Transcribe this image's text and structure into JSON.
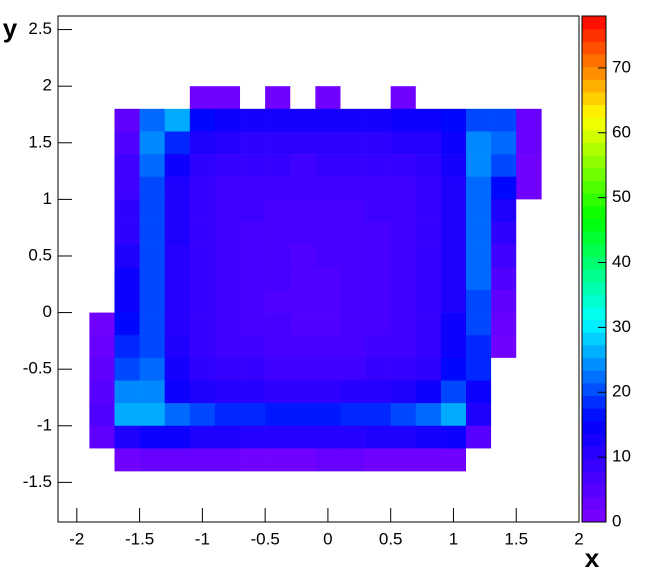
{
  "chart_data": {
    "type": "heatmap",
    "x_label": "x",
    "y_label": "y",
    "xlim": [
      -2.15,
      2.0
    ],
    "ylim": [
      -1.85,
      2.62
    ],
    "zlim": [
      0,
      78
    ],
    "xticks": [
      -2,
      -1.5,
      -1,
      -0.5,
      0,
      0.5,
      1,
      1.5,
      2
    ],
    "yticks": [
      -1.5,
      -1,
      -0.5,
      0,
      0.5,
      1,
      1.5,
      2,
      2.5
    ],
    "zticks": [
      0,
      10,
      20,
      30,
      40,
      50,
      60,
      70
    ],
    "palette": [
      "#8000ff",
      "#0000ff",
      "#00ffff",
      "#00ff00",
      "#ffff00",
      "#ff0000"
    ],
    "x_bins": [
      -1.9,
      -1.7,
      -1.5,
      -1.3,
      -1.1,
      -0.9,
      -0.7,
      -0.5,
      -0.3,
      -0.1,
      0.1,
      0.3,
      0.5,
      0.7,
      0.9,
      1.1,
      1.3,
      1.5,
      1.7
    ],
    "y_bins": [
      2.0,
      1.8,
      1.6,
      1.4,
      1.2,
      1.0,
      0.8,
      0.6,
      0.4,
      0.2,
      0.0,
      -0.2,
      -0.4,
      -0.6,
      -0.8,
      -1.0,
      -1.2,
      -1.4
    ],
    "z": [
      [
        0,
        0,
        0,
        0,
        2,
        2,
        0,
        2,
        0,
        2,
        0,
        0,
        2,
        0,
        0,
        0,
        0,
        0
      ],
      [
        0,
        4,
        22,
        26,
        16,
        14,
        13,
        13,
        13,
        13,
        13,
        13,
        14,
        14,
        16,
        20,
        20,
        3
      ],
      [
        0,
        6,
        24,
        18,
        12,
        11,
        10,
        10,
        10,
        10,
        10,
        10,
        11,
        11,
        14,
        24,
        22,
        3
      ],
      [
        0,
        8,
        22,
        14,
        10,
        9,
        9,
        9,
        8,
        9,
        9,
        9,
        9,
        10,
        13,
        24,
        20,
        2
      ],
      [
        0,
        8,
        20,
        12,
        9,
        8,
        8,
        8,
        8,
        8,
        8,
        8,
        8,
        9,
        12,
        22,
        16,
        2
      ],
      [
        0,
        10,
        20,
        12,
        9,
        8,
        8,
        7,
        7,
        7,
        7,
        8,
        8,
        9,
        12,
        22,
        12,
        0
      ],
      [
        0,
        10,
        20,
        12,
        9,
        8,
        7,
        7,
        7,
        7,
        7,
        7,
        8,
        9,
        12,
        22,
        10,
        0
      ],
      [
        0,
        12,
        20,
        11,
        9,
        8,
        7,
        7,
        6,
        7,
        7,
        7,
        8,
        9,
        12,
        22,
        8,
        0
      ],
      [
        0,
        14,
        20,
        11,
        9,
        8,
        7,
        7,
        6,
        6,
        7,
        7,
        8,
        9,
        12,
        22,
        6,
        0
      ],
      [
        0,
        14,
        20,
        11,
        9,
        8,
        7,
        6,
        6,
        6,
        7,
        7,
        8,
        9,
        12,
        20,
        4,
        0
      ],
      [
        2,
        16,
        20,
        11,
        9,
        8,
        7,
        7,
        6,
        6,
        7,
        7,
        8,
        9,
        14,
        20,
        3,
        0
      ],
      [
        3,
        18,
        20,
        12,
        9,
        8,
        8,
        7,
        7,
        7,
        7,
        8,
        8,
        9,
        14,
        18,
        2,
        0
      ],
      [
        4,
        20,
        22,
        13,
        10,
        9,
        9,
        8,
        8,
        8,
        8,
        9,
        9,
        10,
        16,
        18,
        0,
        0
      ],
      [
        5,
        24,
        24,
        14,
        12,
        11,
        11,
        10,
        10,
        10,
        11,
        11,
        12,
        14,
        20,
        14,
        0,
        0
      ],
      [
        6,
        26,
        26,
        22,
        20,
        18,
        18,
        17,
        17,
        17,
        18,
        18,
        20,
        22,
        26,
        12,
        0,
        0
      ],
      [
        4,
        12,
        14,
        14,
        12,
        12,
        11,
        11,
        11,
        11,
        11,
        12,
        12,
        13,
        14,
        5,
        0,
        0
      ],
      [
        0,
        2,
        3,
        3,
        3,
        3,
        2,
        2,
        2,
        3,
        3,
        2,
        2,
        2,
        2,
        0,
        0,
        0
      ]
    ]
  }
}
